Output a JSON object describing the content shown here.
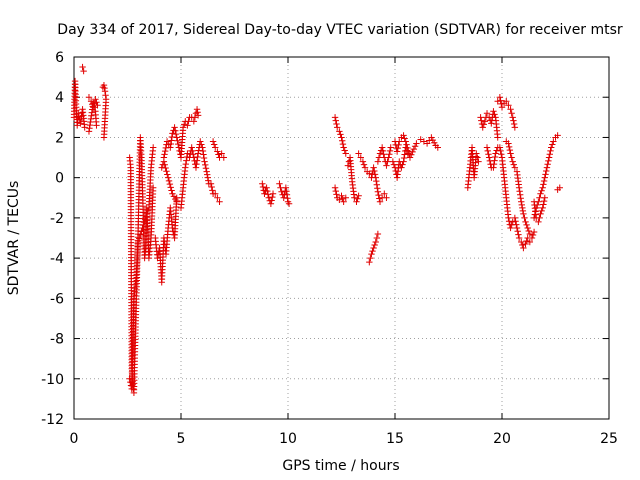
{
  "chart_data": {
    "type": "scatter",
    "title": "Day 334 of 2017, Sidereal Day-to-day VTEC variation (SDTVAR) for receiver mtsr",
    "xlabel": "GPS time / hours",
    "ylabel": "SDTVAR / TECUs",
    "xlim": [
      0,
      25
    ],
    "ylim": [
      -12,
      6
    ],
    "xticks": [
      "0",
      "5",
      "10",
      "15",
      "20",
      "25"
    ],
    "yticks": [
      "6",
      "4",
      "2",
      "0",
      "-2",
      "-4",
      "-6",
      "-8",
      "-10",
      "-12"
    ],
    "grid": true,
    "marker": "plus",
    "color": "#e00000",
    "segments": [
      [
        [
          0.0,
          3.0
        ],
        [
          0.05,
          4.8
        ],
        [
          0.1,
          3.5
        ],
        [
          0.15,
          2.6
        ],
        [
          0.2,
          3.2
        ],
        [
          0.3,
          2.7
        ],
        [
          0.4,
          3.4
        ],
        [
          0.5,
          2.5
        ],
        [
          0.7,
          2.3
        ],
        [
          0.9,
          3.7
        ],
        [
          1.0,
          3.3
        ],
        [
          1.05,
          2.6
        ]
      ],
      [
        [
          0.4,
          5.5
        ],
        [
          0.45,
          5.3
        ]
      ],
      [
        [
          0.7,
          4.0
        ],
        [
          0.8,
          3.8
        ],
        [
          0.9,
          3.5
        ],
        [
          1.0,
          3.9
        ],
        [
          1.1,
          3.6
        ]
      ],
      [
        [
          1.35,
          4.5
        ],
        [
          1.4,
          4.6
        ],
        [
          1.45,
          4.3
        ],
        [
          1.5,
          3.9
        ],
        [
          1.4,
          2.0
        ]
      ],
      [
        [
          2.6,
          1.0
        ],
        [
          2.65,
          0.5
        ],
        [
          2.7,
          -9.5
        ],
        [
          2.75,
          -10.3
        ],
        [
          2.8,
          -10.7
        ],
        [
          2.85,
          -8.5
        ],
        [
          2.9,
          -6.5
        ],
        [
          2.95,
          -4.5
        ],
        [
          3.0,
          -2.5
        ],
        [
          3.05,
          0.0
        ],
        [
          3.1,
          2.0
        ],
        [
          3.15,
          1.0
        ],
        [
          3.2,
          -0.5
        ],
        [
          3.25,
          -2.5
        ],
        [
          3.3,
          -4.0
        ],
        [
          3.35,
          -3.5
        ],
        [
          3.4,
          -1.5
        ],
        [
          3.5,
          -4.0
        ],
        [
          3.6,
          -3.0
        ],
        [
          3.7,
          -0.5
        ]
      ],
      [
        [
          2.6,
          -10.0
        ],
        [
          2.7,
          -10.5
        ],
        [
          2.8,
          -6.0
        ],
        [
          2.9,
          -5.0
        ],
        [
          3.0,
          -3.2
        ],
        [
          3.2,
          -2.5
        ],
        [
          3.5,
          -1.5
        ],
        [
          3.6,
          0.5
        ],
        [
          3.7,
          1.5
        ]
      ],
      [
        [
          3.8,
          -3.0
        ],
        [
          3.9,
          -4.0
        ],
        [
          4.0,
          -3.5
        ],
        [
          4.1,
          -5.2
        ],
        [
          4.2,
          -3.0
        ],
        [
          4.3,
          -3.8
        ],
        [
          4.4,
          -2.5
        ],
        [
          4.5,
          -1.5
        ],
        [
          4.6,
          -2.5
        ],
        [
          4.7,
          -3.0
        ],
        [
          4.8,
          -1.0
        ]
      ],
      [
        [
          4.2,
          1.0
        ],
        [
          4.35,
          1.8
        ],
        [
          4.5,
          1.5
        ],
        [
          4.6,
          2.2
        ],
        [
          4.7,
          2.5
        ],
        [
          4.8,
          2.0
        ],
        [
          4.9,
          1.5
        ],
        [
          5.0,
          1.0
        ],
        [
          5.1,
          2.5
        ],
        [
          5.2,
          2.8
        ],
        [
          5.3,
          2.6
        ],
        [
          5.4,
          3.0
        ],
        [
          5.5,
          3.0
        ],
        [
          5.6,
          2.8
        ],
        [
          5.7,
          3.2
        ],
        [
          5.75,
          3.4
        ],
        [
          5.8,
          3.1
        ]
      ],
      [
        [
          4.1,
          0.5
        ],
        [
          4.2,
          0.8
        ],
        [
          4.4,
          0.0
        ],
        [
          4.6,
          -0.8
        ],
        [
          4.8,
          -1.2
        ]
      ],
      [
        [
          5.0,
          -1.5
        ],
        [
          5.1,
          -0.5
        ],
        [
          5.2,
          0.5
        ],
        [
          5.3,
          1.2
        ],
        [
          5.4,
          1.0
        ],
        [
          5.5,
          1.5
        ],
        [
          5.6,
          1.0
        ],
        [
          5.7,
          0.5
        ],
        [
          5.8,
          1.2
        ],
        [
          5.9,
          1.8
        ],
        [
          6.0,
          1.5
        ],
        [
          6.1,
          0.8
        ],
        [
          6.2,
          0.3
        ],
        [
          6.3,
          -0.3
        ],
        [
          6.4,
          -0.3
        ],
        [
          6.5,
          -0.8
        ],
        [
          6.6,
          -0.8
        ],
        [
          6.7,
          -1.0
        ],
        [
          6.8,
          -1.2
        ]
      ],
      [
        [
          6.5,
          1.8
        ],
        [
          6.6,
          1.5
        ],
        [
          6.7,
          1.3
        ],
        [
          6.8,
          1.0
        ],
        [
          6.9,
          1.2
        ],
        [
          7.0,
          1.0
        ]
      ],
      [
        [
          8.8,
          -0.3
        ],
        [
          8.9,
          -0.8
        ],
        [
          9.0,
          -0.5
        ],
        [
          9.1,
          -1.0
        ],
        [
          9.2,
          -1.3
        ],
        [
          9.3,
          -0.8
        ]
      ],
      [
        [
          9.6,
          -0.3
        ],
        [
          9.7,
          -0.7
        ],
        [
          9.8,
          -1.0
        ],
        [
          9.9,
          -0.5
        ],
        [
          10.0,
          -1.2
        ],
        [
          10.05,
          -1.3
        ]
      ],
      [
        [
          12.2,
          3.0
        ],
        [
          12.3,
          2.5
        ],
        [
          12.4,
          2.3
        ],
        [
          12.5,
          2.0
        ],
        [
          12.6,
          1.5
        ],
        [
          12.7,
          1.2
        ]
      ],
      [
        [
          12.2,
          -0.5
        ],
        [
          12.3,
          -1.0
        ],
        [
          12.4,
          -1.1
        ],
        [
          12.5,
          -0.9
        ],
        [
          12.6,
          -1.2
        ],
        [
          12.7,
          -1.0
        ]
      ],
      [
        [
          12.8,
          0.6
        ],
        [
          12.9,
          1.0
        ],
        [
          13.0,
          -0.2
        ],
        [
          13.1,
          -1.0
        ],
        [
          13.2,
          -1.2
        ],
        [
          13.3,
          -0.9
        ]
      ],
      [
        [
          13.3,
          1.2
        ],
        [
          13.4,
          1.0
        ],
        [
          13.5,
          0.8
        ],
        [
          13.6,
          0.5
        ],
        [
          13.7,
          0.3
        ],
        [
          13.8,
          0.2
        ],
        [
          13.9,
          0.0
        ],
        [
          14.0,
          0.5
        ],
        [
          14.1,
          0.0
        ],
        [
          14.2,
          -0.7
        ],
        [
          14.3,
          -1.2
        ],
        [
          14.4,
          -1.0
        ],
        [
          14.5,
          -0.8
        ],
        [
          14.6,
          -1.0
        ]
      ],
      [
        [
          13.8,
          -4.2
        ],
        [
          13.9,
          -3.8
        ],
        [
          14.0,
          -3.5
        ],
        [
          14.1,
          -3.2
        ],
        [
          14.2,
          -2.8
        ]
      ],
      [
        [
          14.2,
          0.8
        ],
        [
          14.3,
          1.2
        ],
        [
          14.4,
          1.5
        ],
        [
          14.5,
          1.0
        ],
        [
          14.6,
          0.6
        ],
        [
          14.7,
          1.0
        ],
        [
          14.8,
          1.5
        ]
      ],
      [
        [
          14.9,
          0.8
        ],
        [
          15.0,
          0.5
        ],
        [
          15.1,
          0.0
        ],
        [
          15.2,
          0.8
        ],
        [
          15.3,
          0.5
        ],
        [
          15.4,
          0.8
        ],
        [
          15.5,
          1.5
        ],
        [
          15.6,
          1.2
        ]
      ],
      [
        [
          15.0,
          1.8
        ],
        [
          15.1,
          1.3
        ],
        [
          15.2,
          1.8
        ],
        [
          15.3,
          2.0
        ],
        [
          15.4,
          2.1
        ],
        [
          15.5,
          1.8
        ],
        [
          15.7,
          1.0
        ],
        [
          16.0,
          1.7
        ],
        [
          16.2,
          1.9
        ],
        [
          16.5,
          1.7
        ],
        [
          16.7,
          2.0
        ],
        [
          16.9,
          1.6
        ],
        [
          17.0,
          1.5
        ]
      ],
      [
        [
          18.4,
          -0.5
        ],
        [
          18.5,
          0.5
        ],
        [
          18.6,
          1.5
        ],
        [
          18.7,
          0.0
        ],
        [
          18.8,
          1.2
        ],
        [
          18.9,
          0.8
        ]
      ],
      [
        [
          19.0,
          3.0
        ],
        [
          19.1,
          2.5
        ],
        [
          19.2,
          2.8
        ],
        [
          19.3,
          3.2
        ],
        [
          19.4,
          3.0
        ],
        [
          19.5,
          2.7
        ],
        [
          19.6,
          3.3
        ],
        [
          19.7,
          3.0
        ],
        [
          19.8,
          2.0
        ]
      ],
      [
        [
          19.3,
          1.5
        ],
        [
          19.4,
          1.0
        ],
        [
          19.5,
          0.5
        ],
        [
          19.6,
          0.5
        ],
        [
          19.7,
          1.2
        ],
        [
          19.8,
          1.5
        ]
      ],
      [
        [
          19.8,
          3.8
        ],
        [
          19.9,
          4.0
        ],
        [
          20.0,
          3.5
        ],
        [
          20.1,
          3.7
        ],
        [
          20.2,
          3.8
        ],
        [
          20.3,
          3.6
        ],
        [
          20.4,
          3.4
        ],
        [
          20.5,
          3.0
        ],
        [
          20.6,
          2.5
        ]
      ],
      [
        [
          19.9,
          1.5
        ],
        [
          20.0,
          1.0
        ],
        [
          20.1,
          0.0
        ],
        [
          20.2,
          -1.0
        ],
        [
          20.3,
          -2.0
        ],
        [
          20.4,
          -2.5
        ],
        [
          20.5,
          -2.2
        ],
        [
          20.6,
          -2.0
        ],
        [
          20.7,
          -2.5
        ],
        [
          20.8,
          -3.0
        ],
        [
          20.9,
          -3.2
        ],
        [
          21.0,
          -3.5
        ],
        [
          21.1,
          -3.3
        ],
        [
          21.2,
          -3.0
        ],
        [
          21.3,
          -3.2
        ]
      ],
      [
        [
          20.2,
          1.8
        ],
        [
          20.3,
          1.7
        ],
        [
          20.4,
          1.2
        ],
        [
          20.5,
          0.8
        ],
        [
          20.6,
          0.5
        ],
        [
          20.7,
          0.3
        ],
        [
          20.8,
          -0.5
        ],
        [
          20.9,
          -1.2
        ],
        [
          21.0,
          -1.8
        ],
        [
          21.1,
          -2.2
        ],
        [
          21.2,
          -2.5
        ],
        [
          21.3,
          -2.8
        ],
        [
          21.4,
          -3.0
        ],
        [
          21.5,
          -2.7
        ]
      ],
      [
        [
          21.5,
          -2.0
        ],
        [
          21.6,
          -1.5
        ],
        [
          21.7,
          -1.2
        ],
        [
          21.8,
          -0.8
        ],
        [
          21.9,
          -0.5
        ],
        [
          22.0,
          0.0
        ],
        [
          22.1,
          0.5
        ],
        [
          22.2,
          1.0
        ],
        [
          22.3,
          1.5
        ],
        [
          22.4,
          1.8
        ],
        [
          22.5,
          2.0
        ],
        [
          22.6,
          2.1
        ]
      ],
      [
        [
          21.5,
          -1.2
        ],
        [
          21.6,
          -2.0
        ],
        [
          21.7,
          -2.2
        ],
        [
          21.8,
          -1.8
        ],
        [
          21.9,
          -1.5
        ],
        [
          22.0,
          -1.0
        ]
      ],
      [
        [
          22.6,
          -0.6
        ],
        [
          22.7,
          -0.5
        ]
      ]
    ]
  }
}
